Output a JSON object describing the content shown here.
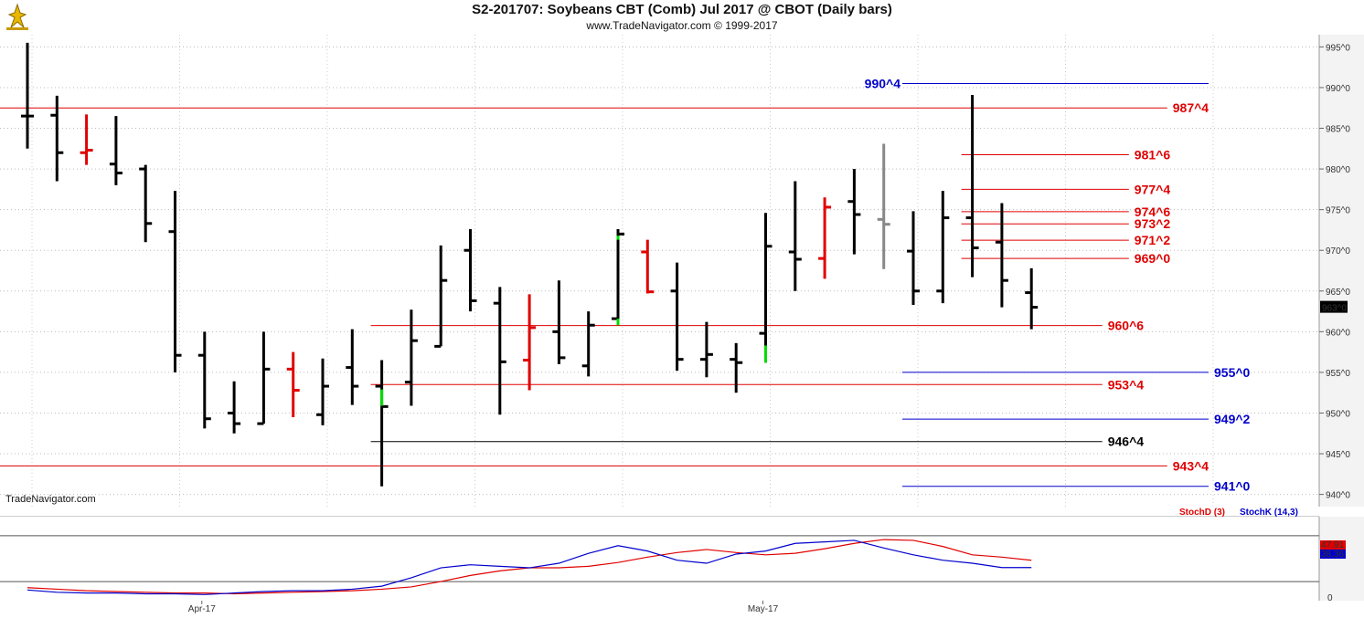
{
  "header": {
    "title": "S2-201707:  Soybeans CBT (Comb) Jul 2017 @ CBOT  (Daily bars)",
    "subtitle": "www.TradeNavigator.com © 1999-2017",
    "watermark": "TradeNavigator.com"
  },
  "colors": {
    "up_bar": "#000000",
    "reversal_bar": "#e00000",
    "accent_green": "#00dd00",
    "neutral_bar": "#888888",
    "level_red": "#e00000",
    "level_blue": "#0000cc",
    "level_black": "#000000",
    "panel_bg": "#f3f3f3",
    "stochD": "#dd0000",
    "stochK": "#0000cc"
  },
  "chart_data": [
    {
      "type": "ohlc",
      "ylim": [
        938.5,
        996.5
      ],
      "y_ticks": [
        "995^0",
        "990^0",
        "985^0",
        "980^0",
        "975^0",
        "970^0",
        "965^0",
        "960^0",
        "955^0",
        "950^0",
        "945^0",
        "940^0"
      ],
      "y_tick_values": [
        995,
        990,
        985,
        980,
        975,
        970,
        965,
        960,
        955,
        950,
        945,
        940
      ],
      "x_labels": [
        {
          "label": "Apr-17",
          "index": 6
        },
        {
          "label": "May-17",
          "index": 25
        }
      ],
      "last_price_label": "963^0",
      "last_price": 963.0,
      "bars": [
        {
          "o": 986.5,
          "h": 995.5,
          "l": 982.5,
          "c": 986.5,
          "color": "black"
        },
        {
          "o": 986.6,
          "h": 989.0,
          "l": 978.5,
          "c": 982.0,
          "color": "black"
        },
        {
          "o": 982.0,
          "h": 986.7,
          "l": 980.5,
          "c": 982.3,
          "color": "red"
        },
        {
          "o": 980.6,
          "h": 986.5,
          "l": 978.0,
          "c": 979.5,
          "color": "black"
        },
        {
          "o": 980.0,
          "h": 980.5,
          "l": 971.0,
          "c": 973.3,
          "color": "black"
        },
        {
          "o": 972.3,
          "h": 977.3,
          "l": 955.0,
          "c": 957.1,
          "color": "black"
        },
        {
          "o": 957.1,
          "h": 960.0,
          "l": 948.1,
          "c": 949.3,
          "color": "black"
        },
        {
          "o": 950.0,
          "h": 953.9,
          "l": 947.5,
          "c": 948.7,
          "color": "black"
        },
        {
          "o": 948.7,
          "h": 960.0,
          "l": 948.7,
          "c": 955.4,
          "color": "black"
        },
        {
          "o": 955.4,
          "h": 957.5,
          "l": 949.5,
          "c": 952.8,
          "color": "red"
        },
        {
          "o": 949.8,
          "h": 956.7,
          "l": 948.5,
          "c": 953.3,
          "color": "black"
        },
        {
          "o": 955.6,
          "h": 960.3,
          "l": 951.0,
          "c": 953.3,
          "color": "black"
        },
        {
          "o": 953.3,
          "h": 956.5,
          "l": 941.0,
          "c": 950.8,
          "color": "black",
          "green_tail": [
            950.9,
            952.9
          ]
        },
        {
          "o": 953.8,
          "h": 962.7,
          "l": 950.9,
          "c": 958.9,
          "color": "black"
        },
        {
          "o": 958.2,
          "h": 970.6,
          "l": 958.2,
          "c": 966.3,
          "color": "black"
        },
        {
          "o": 970.0,
          "h": 972.6,
          "l": 962.5,
          "c": 963.8,
          "color": "black"
        },
        {
          "o": 963.5,
          "h": 965.5,
          "l": 949.8,
          "c": 956.3,
          "color": "black"
        },
        {
          "o": 956.5,
          "h": 964.6,
          "l": 952.8,
          "c": 960.5,
          "color": "red"
        },
        {
          "o": 960.0,
          "h": 966.3,
          "l": 956.0,
          "c": 956.8,
          "color": "black"
        },
        {
          "o": 955.8,
          "h": 962.5,
          "l": 954.5,
          "c": 960.8,
          "color": "black"
        },
        {
          "o": 961.6,
          "h": 972.6,
          "l": 960.8,
          "c": 972.0,
          "color": "black",
          "green_tail": [
            960.8,
            961.6
          ],
          "green_head": [
            971.3,
            971.8
          ]
        },
        {
          "o": 969.8,
          "h": 971.3,
          "l": 964.7,
          "c": 964.9,
          "color": "red"
        },
        {
          "o": 965.0,
          "h": 968.5,
          "l": 955.2,
          "c": 956.6,
          "color": "black"
        },
        {
          "o": 956.6,
          "h": 961.2,
          "l": 954.4,
          "c": 957.2,
          "color": "black"
        },
        {
          "o": 956.6,
          "h": 958.6,
          "l": 952.5,
          "c": 956.2,
          "color": "black"
        },
        {
          "o": 959.8,
          "h": 974.6,
          "l": 956.2,
          "c": 970.5,
          "color": "black",
          "green_tail": [
            956.2,
            958.3
          ]
        },
        {
          "o": 969.8,
          "h": 978.5,
          "l": 965.0,
          "c": 968.9,
          "color": "black"
        },
        {
          "o": 969.0,
          "h": 976.5,
          "l": 966.5,
          "c": 975.3,
          "color": "red"
        },
        {
          "o": 976.0,
          "h": 980.0,
          "l": 969.5,
          "c": 974.4,
          "color": "black"
        },
        {
          "o": 973.8,
          "h": 983.1,
          "l": 967.7,
          "c": 973.2,
          "color": "grey"
        },
        {
          "o": 969.9,
          "h": 974.8,
          "l": 963.3,
          "c": 965.0,
          "color": "black"
        },
        {
          "o": 965.0,
          "h": 977.3,
          "l": 963.5,
          "c": 974.0,
          "color": "black"
        },
        {
          "o": 974.0,
          "h": 989.1,
          "l": 966.7,
          "c": 970.3,
          "color": "black"
        },
        {
          "o": 971.0,
          "h": 975.8,
          "l": 963.0,
          "c": 966.3,
          "color": "black"
        },
        {
          "o": 964.8,
          "h": 967.8,
          "l": 960.3,
          "c": 963.0,
          "color": "black"
        }
      ],
      "levels": [
        {
          "value": 990.5,
          "label": "990^4",
          "color": "blue",
          "x_start_index": 30,
          "x_end_index": 40,
          "label_pos": "left"
        },
        {
          "value": 987.5,
          "label": "987^4",
          "color": "red",
          "x_start_index": -1,
          "x_end_index": 38.6,
          "label_pos": "right"
        },
        {
          "value": 981.75,
          "label": "981^6",
          "color": "red",
          "x_start_index": 32,
          "x_end_index": 37.3,
          "label_pos": "right"
        },
        {
          "value": 977.5,
          "label": "977^4",
          "color": "red",
          "x_start_index": 32,
          "x_end_index": 37.3,
          "label_pos": "right"
        },
        {
          "value": 974.75,
          "label": "974^6",
          "color": "red",
          "x_start_index": 32,
          "x_end_index": 37.3,
          "label_pos": "right"
        },
        {
          "value": 973.25,
          "label": "973^2",
          "color": "red",
          "x_start_index": 32,
          "x_end_index": 37.3,
          "label_pos": "right"
        },
        {
          "value": 971.25,
          "label": "971^2",
          "color": "red",
          "x_start_index": 32,
          "x_end_index": 37.3,
          "label_pos": "right"
        },
        {
          "value": 969.0,
          "label": "969^0",
          "color": "red",
          "x_start_index": 32,
          "x_end_index": 37.3,
          "label_pos": "right"
        },
        {
          "value": 960.75,
          "label": "960^6",
          "color": "red",
          "x_start_index": 12,
          "x_end_index": 36.4,
          "label_pos": "right"
        },
        {
          "value": 955.0,
          "label": "955^0",
          "color": "blue",
          "x_start_index": 30,
          "x_end_index": 40,
          "label_pos": "right"
        },
        {
          "value": 953.5,
          "label": "953^4",
          "color": "red",
          "x_start_index": 12,
          "x_end_index": 36.4,
          "label_pos": "right"
        },
        {
          "value": 949.25,
          "label": "949^2",
          "color": "blue",
          "x_start_index": 30,
          "x_end_index": 40,
          "label_pos": "right"
        },
        {
          "value": 946.5,
          "label": "946^4",
          "color": "black",
          "x_start_index": 12,
          "x_end_index": 36.4,
          "label_pos": "right"
        },
        {
          "value": 943.5,
          "label": "943^4",
          "color": "red",
          "x_start_index": -1,
          "x_end_index": 38.6,
          "label_pos": "right"
        },
        {
          "value": 941.0,
          "label": "941^0",
          "color": "blue",
          "x_start_index": 30,
          "x_end_index": 40,
          "label_pos": "right"
        }
      ]
    },
    {
      "type": "line",
      "ylim": [
        -5,
        105
      ],
      "y_ticks": [
        "0"
      ],
      "y_tick_values": [
        0
      ],
      "guide_lines": [
        20,
        80
      ],
      "legend": [
        {
          "label": "StochD (3)",
          "color": "red"
        },
        {
          "label": "StochK (14,3)",
          "color": "blue"
        }
      ],
      "last_values": [
        {
          "label": "47.91",
          "value": 47.91,
          "color": "red"
        },
        {
          "label": "38.36",
          "value": 38.36,
          "color": "blue"
        }
      ],
      "series": [
        {
          "name": "StochD (3)",
          "color": "red",
          "values": [
            12,
            10,
            8,
            7,
            6,
            5,
            5,
            4,
            5,
            6,
            7,
            8,
            10,
            13,
            20,
            28,
            34,
            38,
            38,
            40,
            45,
            52,
            58,
            62,
            58,
            55,
            57,
            63,
            70,
            75,
            74,
            66,
            55,
            52,
            47.91
          ]
        },
        {
          "name": "StochK (14,3)",
          "color": "blue",
          "values": [
            9,
            6,
            5,
            5,
            4,
            4,
            3,
            5,
            7,
            8,
            8,
            10,
            14,
            25,
            38,
            42,
            40,
            38,
            44,
            57,
            67,
            60,
            48,
            44,
            56,
            60,
            70,
            72,
            74,
            64,
            55,
            48,
            44,
            38.36,
            38.36
          ]
        }
      ]
    }
  ]
}
